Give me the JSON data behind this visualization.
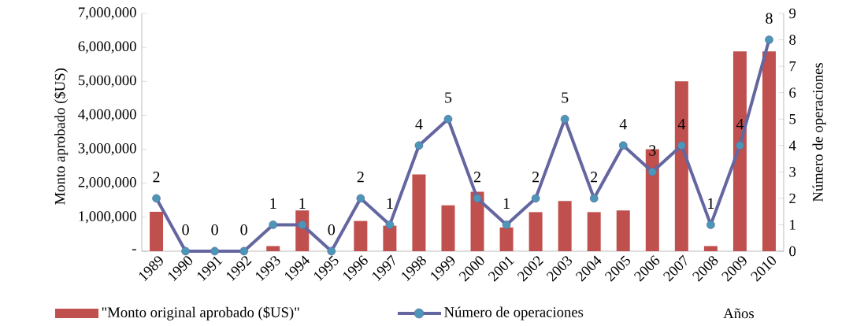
{
  "chart_data": {
    "type": "bar",
    "xlabel": "Años",
    "ylabel": "Monto aprobado ($US)",
    "y2label": "Número de operaciones",
    "categories": [
      "1989",
      "1990",
      "1991",
      "1992",
      "1993",
      "1994",
      "1995",
      "1996",
      "1997",
      "1998",
      "1999",
      "2000",
      "2001",
      "2002",
      "2003",
      "2004",
      "2005",
      "2006",
      "2007",
      "2008",
      "2009",
      "2010"
    ],
    "series": [
      {
        "name": "\"Monto original aprobado ($US)\"",
        "color": "#c0504d",
        "values": [
          1160000,
          0,
          0,
          0,
          150000,
          1200000,
          0,
          890000,
          750000,
          2260000,
          1350000,
          1750000,
          700000,
          1150000,
          1480000,
          1150000,
          1200000,
          3000000,
          5000000,
          150000,
          5880000,
          5880000
        ]
      },
      {
        "name": "Número de operaciones",
        "type": "line",
        "axis": "y2",
        "color": "#6466a0",
        "marker": "circle",
        "values": [
          2,
          0,
          0,
          0,
          1,
          1,
          0,
          2,
          1,
          4,
          5,
          2,
          1,
          2,
          5,
          2,
          4,
          3,
          4,
          1,
          4,
          8
        ],
        "value_labels": [
          "2",
          "0",
          "0",
          "0",
          "1",
          "1",
          "0",
          "2",
          "1",
          "4",
          "5",
          "2",
          "1",
          "2",
          "5",
          "2",
          "4",
          "3",
          "4",
          "1",
          "4",
          "8"
        ]
      }
    ],
    "ylim": [
      0,
      7000000
    ],
    "yticks": [
      {
        "value": 0,
        "label": "-"
      },
      {
        "value": 1000000,
        "label": "1,000,000"
      },
      {
        "value": 2000000,
        "label": "2,000,000"
      },
      {
        "value": 3000000,
        "label": "3,000,000"
      },
      {
        "value": 4000000,
        "label": "4,000,000"
      },
      {
        "value": 5000000,
        "label": "5,000,000"
      },
      {
        "value": 6000000,
        "label": "6,000,000"
      },
      {
        "value": 7000000,
        "label": "7,000,000"
      }
    ],
    "y2lim": [
      0,
      9
    ],
    "y2ticks": [
      0,
      1,
      2,
      3,
      4,
      5,
      6,
      7,
      8,
      9
    ],
    "grid": false,
    "legend": "bottom"
  }
}
